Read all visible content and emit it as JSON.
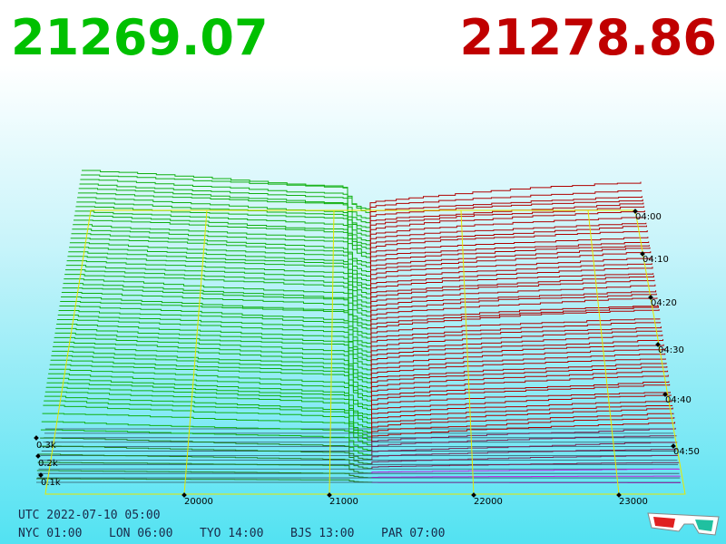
{
  "header": {
    "bid": "21269.07",
    "ask": "21278.86"
  },
  "price_axis": [
    "20000",
    "21000",
    "22000",
    "23000"
  ],
  "time_axis": [
    "04:00",
    "04:10",
    "04:20",
    "04:30",
    "04:40",
    "04:50"
  ],
  "depth_axis": [
    "0.3k",
    "0.2k",
    "0.1k"
  ],
  "footer": {
    "utc": "UTC 2022-07-10 05:00",
    "clocks": [
      "NYC 01:00",
      "LON 06:00",
      "TYO 14:00",
      "BJS 13:00",
      "PAR 07:00"
    ]
  }
}
